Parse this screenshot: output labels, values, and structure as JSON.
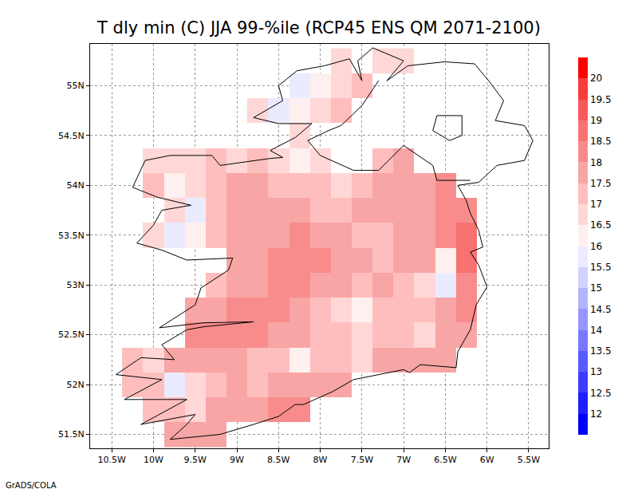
{
  "chart_data": {
    "type": "heatmap",
    "title": "T dly min (C) JJA 99-%ile (RCP45 ENS QM 2071-2100)",
    "annotations": [
      "GrADS/COLA"
    ],
    "grid": true,
    "xlim": [
      -10.76,
      -5.26
    ],
    "ylim": [
      51.36,
      55.42
    ],
    "xticks": [
      {
        "value": -10.5,
        "label": "10.5W"
      },
      {
        "value": -10,
        "label": "10W"
      },
      {
        "value": -9.5,
        "label": "9.5W"
      },
      {
        "value": -9,
        "label": "9W"
      },
      {
        "value": -8.5,
        "label": "8.5W"
      },
      {
        "value": -8,
        "label": "8W"
      },
      {
        "value": -7.5,
        "label": "7.5W"
      },
      {
        "value": -7,
        "label": "7W"
      },
      {
        "value": -6.5,
        "label": "6.5W"
      },
      {
        "value": -6,
        "label": "6W"
      },
      {
        "value": -5.5,
        "label": "5.5W"
      }
    ],
    "yticks": [
      {
        "value": 51.5,
        "label": "51.5N"
      },
      {
        "value": 52,
        "label": "52N"
      },
      {
        "value": 52.5,
        "label": "52.5N"
      },
      {
        "value": 53,
        "label": "53N"
      },
      {
        "value": 53.5,
        "label": "53.5N"
      },
      {
        "value": 54,
        "label": "54N"
      },
      {
        "value": 54.5,
        "label": "54.5N"
      },
      {
        "value": 55,
        "label": "55N"
      }
    ],
    "x": [
      -10.5,
      -10.25,
      -10.0,
      -9.75,
      -9.5,
      -9.25,
      -9.0,
      -8.75,
      -8.5,
      -8.25,
      -8.0,
      -7.75,
      -7.5,
      -7.25,
      -7.0,
      -6.75,
      -6.5,
      -6.25,
      -6.0
    ],
    "y": [
      51.5,
      51.75,
      52.0,
      52.25,
      52.5,
      52.75,
      53.0,
      53.25,
      53.5,
      53.75,
      54.0,
      54.25,
      54.5,
      54.75,
      55.0,
      55.25
    ],
    "z": [
      [
        null,
        null,
        null,
        17.6,
        17.8,
        17.9,
        null,
        null,
        null,
        null,
        null,
        null,
        null,
        null,
        null,
        null,
        null,
        null,
        null
      ],
      [
        null,
        null,
        17.2,
        17.4,
        16.8,
        17.6,
        17.8,
        17.9,
        18.0,
        18.1,
        null,
        null,
        null,
        null,
        null,
        null,
        null,
        null,
        null
      ],
      [
        null,
        17.3,
        17.0,
        15.8,
        16.9,
        17.4,
        17.6,
        17.2,
        17.5,
        17.8,
        17.6,
        17.9,
        null,
        null,
        null,
        null,
        null,
        null,
        null
      ],
      [
        null,
        17.4,
        16.9,
        17.6,
        17.9,
        17.7,
        17.6,
        17.4,
        17.3,
        16.4,
        17.2,
        17.3,
        16.8,
        17.5,
        17.8,
        17.9,
        17.8,
        null,
        null
      ],
      [
        null,
        null,
        null,
        null,
        18.1,
        18.0,
        18.3,
        18.4,
        17.9,
        17.6,
        17.4,
        17.2,
        16.8,
        17.3,
        17.0,
        16.5,
        17.6,
        17.9,
        null
      ],
      [
        null,
        null,
        null,
        null,
        17.8,
        17.9,
        18.2,
        18.3,
        18.2,
        17.6,
        17.3,
        16.7,
        16.4,
        17.0,
        17.4,
        17.2,
        17.6,
        18.0,
        null
      ],
      [
        null,
        null,
        null,
        null,
        null,
        17.2,
        17.6,
        17.8,
        18.1,
        18.0,
        17.7,
        17.5,
        17.3,
        17.6,
        17.4,
        16.8,
        15.5,
        18.2,
        null
      ],
      [
        null,
        null,
        null,
        null,
        null,
        null,
        17.6,
        17.9,
        18.2,
        18.3,
        18.1,
        17.8,
        17.6,
        17.4,
        17.7,
        17.5,
        16.0,
        18.6,
        null
      ],
      [
        null,
        null,
        16.9,
        15.9,
        16.4,
        17.2,
        17.6,
        17.8,
        17.9,
        18.0,
        17.7,
        17.6,
        17.4,
        17.3,
        17.6,
        17.8,
        18.1,
        18.7,
        null
      ],
      [
        null,
        null,
        null,
        16.8,
        15.6,
        17.0,
        17.6,
        17.8,
        17.7,
        17.6,
        17.4,
        17.2,
        17.5,
        17.6,
        17.7,
        17.9,
        18.0,
        18.3,
        null
      ],
      [
        null,
        null,
        17.0,
        16.2,
        16.9,
        17.3,
        17.5,
        17.6,
        17.4,
        17.2,
        17.0,
        16.8,
        17.3,
        17.5,
        17.6,
        17.8,
        18.1,
        null,
        null
      ],
      [
        null,
        null,
        16.8,
        16.5,
        16.7,
        17.0,
        16.9,
        17.2,
        16.6,
        16.1,
        16.9,
        null,
        null,
        17.3,
        17.5,
        null,
        null,
        null,
        null
      ],
      [
        null,
        null,
        null,
        null,
        null,
        null,
        null,
        null,
        null,
        16.6,
        null,
        null,
        null,
        null,
        null,
        null,
        null,
        null,
        null
      ],
      [
        null,
        null,
        null,
        null,
        null,
        null,
        null,
        16.7,
        15.8,
        16.4,
        16.9,
        17.1,
        null,
        null,
        null,
        null,
        null,
        null,
        null
      ],
      [
        null,
        null,
        null,
        null,
        null,
        null,
        null,
        null,
        null,
        15.6,
        16.2,
        16.8,
        17.0,
        null,
        null,
        null,
        null,
        null,
        null
      ],
      [
        null,
        null,
        null,
        null,
        null,
        null,
        null,
        null,
        null,
        null,
        null,
        16.8,
        null,
        16.5,
        16.9,
        null,
        null,
        null,
        null
      ]
    ],
    "colorbar": {
      "range": [
        11.5,
        20.5
      ],
      "ticks": [
        12,
        12.5,
        13,
        13.5,
        14,
        14.5,
        15,
        15.5,
        16,
        16.5,
        17,
        17.5,
        18,
        18.5,
        19,
        19.5,
        20
      ],
      "colors": [
        "#0000ff",
        "#1e1eff",
        "#3c3cff",
        "#5a5aff",
        "#7878ff",
        "#9696ff",
        "#b4b4ff",
        "#d2d2ff",
        "#ebebff",
        "#fff0f0",
        "#ffd7d7",
        "#ffbebe",
        "#f8a5a5",
        "#f88c8c",
        "#f87272",
        "#f85858",
        "#f83c3c",
        "#ff0000"
      ]
    },
    "coastline": {
      "lon": [
        -7.37,
        -7.0,
        -7.2,
        -6.95,
        -6.51,
        -6.15,
        -5.98,
        -5.8,
        -5.9,
        -5.55,
        -5.45,
        -5.55,
        -5.88,
        -6.1,
        -6.35,
        -6.25,
        -6.2,
        -6.1,
        -6.05,
        -6.2,
        -6.1,
        -6.0,
        -6.13,
        -6.2,
        -6.35,
        -6.37,
        -6.8,
        -6.93,
        -7.0,
        -7.6,
        -7.85,
        -8.2,
        -8.3,
        -8.5,
        -8.8,
        -9.2,
        -9.8,
        -9.6,
        -9.5,
        -10.15,
        -9.6,
        -10.35,
        -9.9,
        -10.45,
        -10.15,
        -9.75,
        -9.9,
        -9.6,
        -9.4,
        -8.8,
        -9.4,
        -9.93,
        -9.5,
        -9.43,
        -9.1,
        -9.05,
        -9.6,
        -9.9,
        -10.2,
        -10.0,
        -9.9,
        -9.55,
        -9.95,
        -10.25,
        -10.1,
        -9.8,
        -9.3,
        -9.2,
        -8.6,
        -8.45,
        -8.6,
        -8.3,
        -8.1,
        -8.5,
        -8.8,
        -8.45,
        -8.5,
        -8.28,
        -7.95,
        -7.65,
        -7.5,
        -7.55,
        -7.37
      ],
      "lat": [
        55.38,
        55.25,
        55.05,
        55.2,
        55.24,
        55.22,
        55.05,
        54.85,
        54.65,
        54.6,
        54.45,
        54.25,
        54.2,
        54.03,
        54.0,
        53.85,
        53.72,
        53.55,
        53.38,
        53.33,
        53.2,
        52.98,
        52.8,
        52.55,
        52.33,
        52.17,
        52.2,
        52.12,
        52.15,
        52.05,
        51.93,
        51.8,
        51.8,
        51.68,
        51.6,
        51.5,
        51.45,
        51.6,
        51.7,
        51.6,
        51.85,
        51.85,
        52.05,
        52.1,
        52.27,
        52.25,
        52.4,
        52.55,
        52.58,
        52.63,
        52.62,
        52.57,
        52.8,
        52.97,
        53.15,
        53.27,
        53.25,
        53.35,
        53.42,
        53.6,
        53.75,
        53.8,
        53.88,
        53.98,
        54.25,
        54.3,
        54.3,
        54.2,
        54.27,
        54.28,
        54.35,
        54.48,
        54.62,
        54.62,
        54.68,
        54.85,
        55.0,
        55.15,
        55.2,
        55.27,
        55.05,
        55.25,
        55.38
      ]
    },
    "border": {
      "lon": [
        -6.2,
        -6.6,
        -6.65,
        -7.0,
        -7.3,
        -7.6,
        -8.0,
        -8.15,
        -7.9,
        -7.75,
        -7.5,
        -7.3
      ],
      "lat": [
        54.05,
        54.05,
        54.2,
        54.4,
        54.15,
        54.15,
        54.3,
        54.45,
        54.55,
        54.6,
        54.8,
        55.05
      ]
    },
    "lough_neagh": {
      "lon": [
        -6.6,
        -6.3,
        -6.3,
        -6.45,
        -6.65,
        -6.6
      ],
      "lat": [
        54.7,
        54.7,
        54.5,
        54.45,
        54.55,
        54.7
      ]
    }
  }
}
